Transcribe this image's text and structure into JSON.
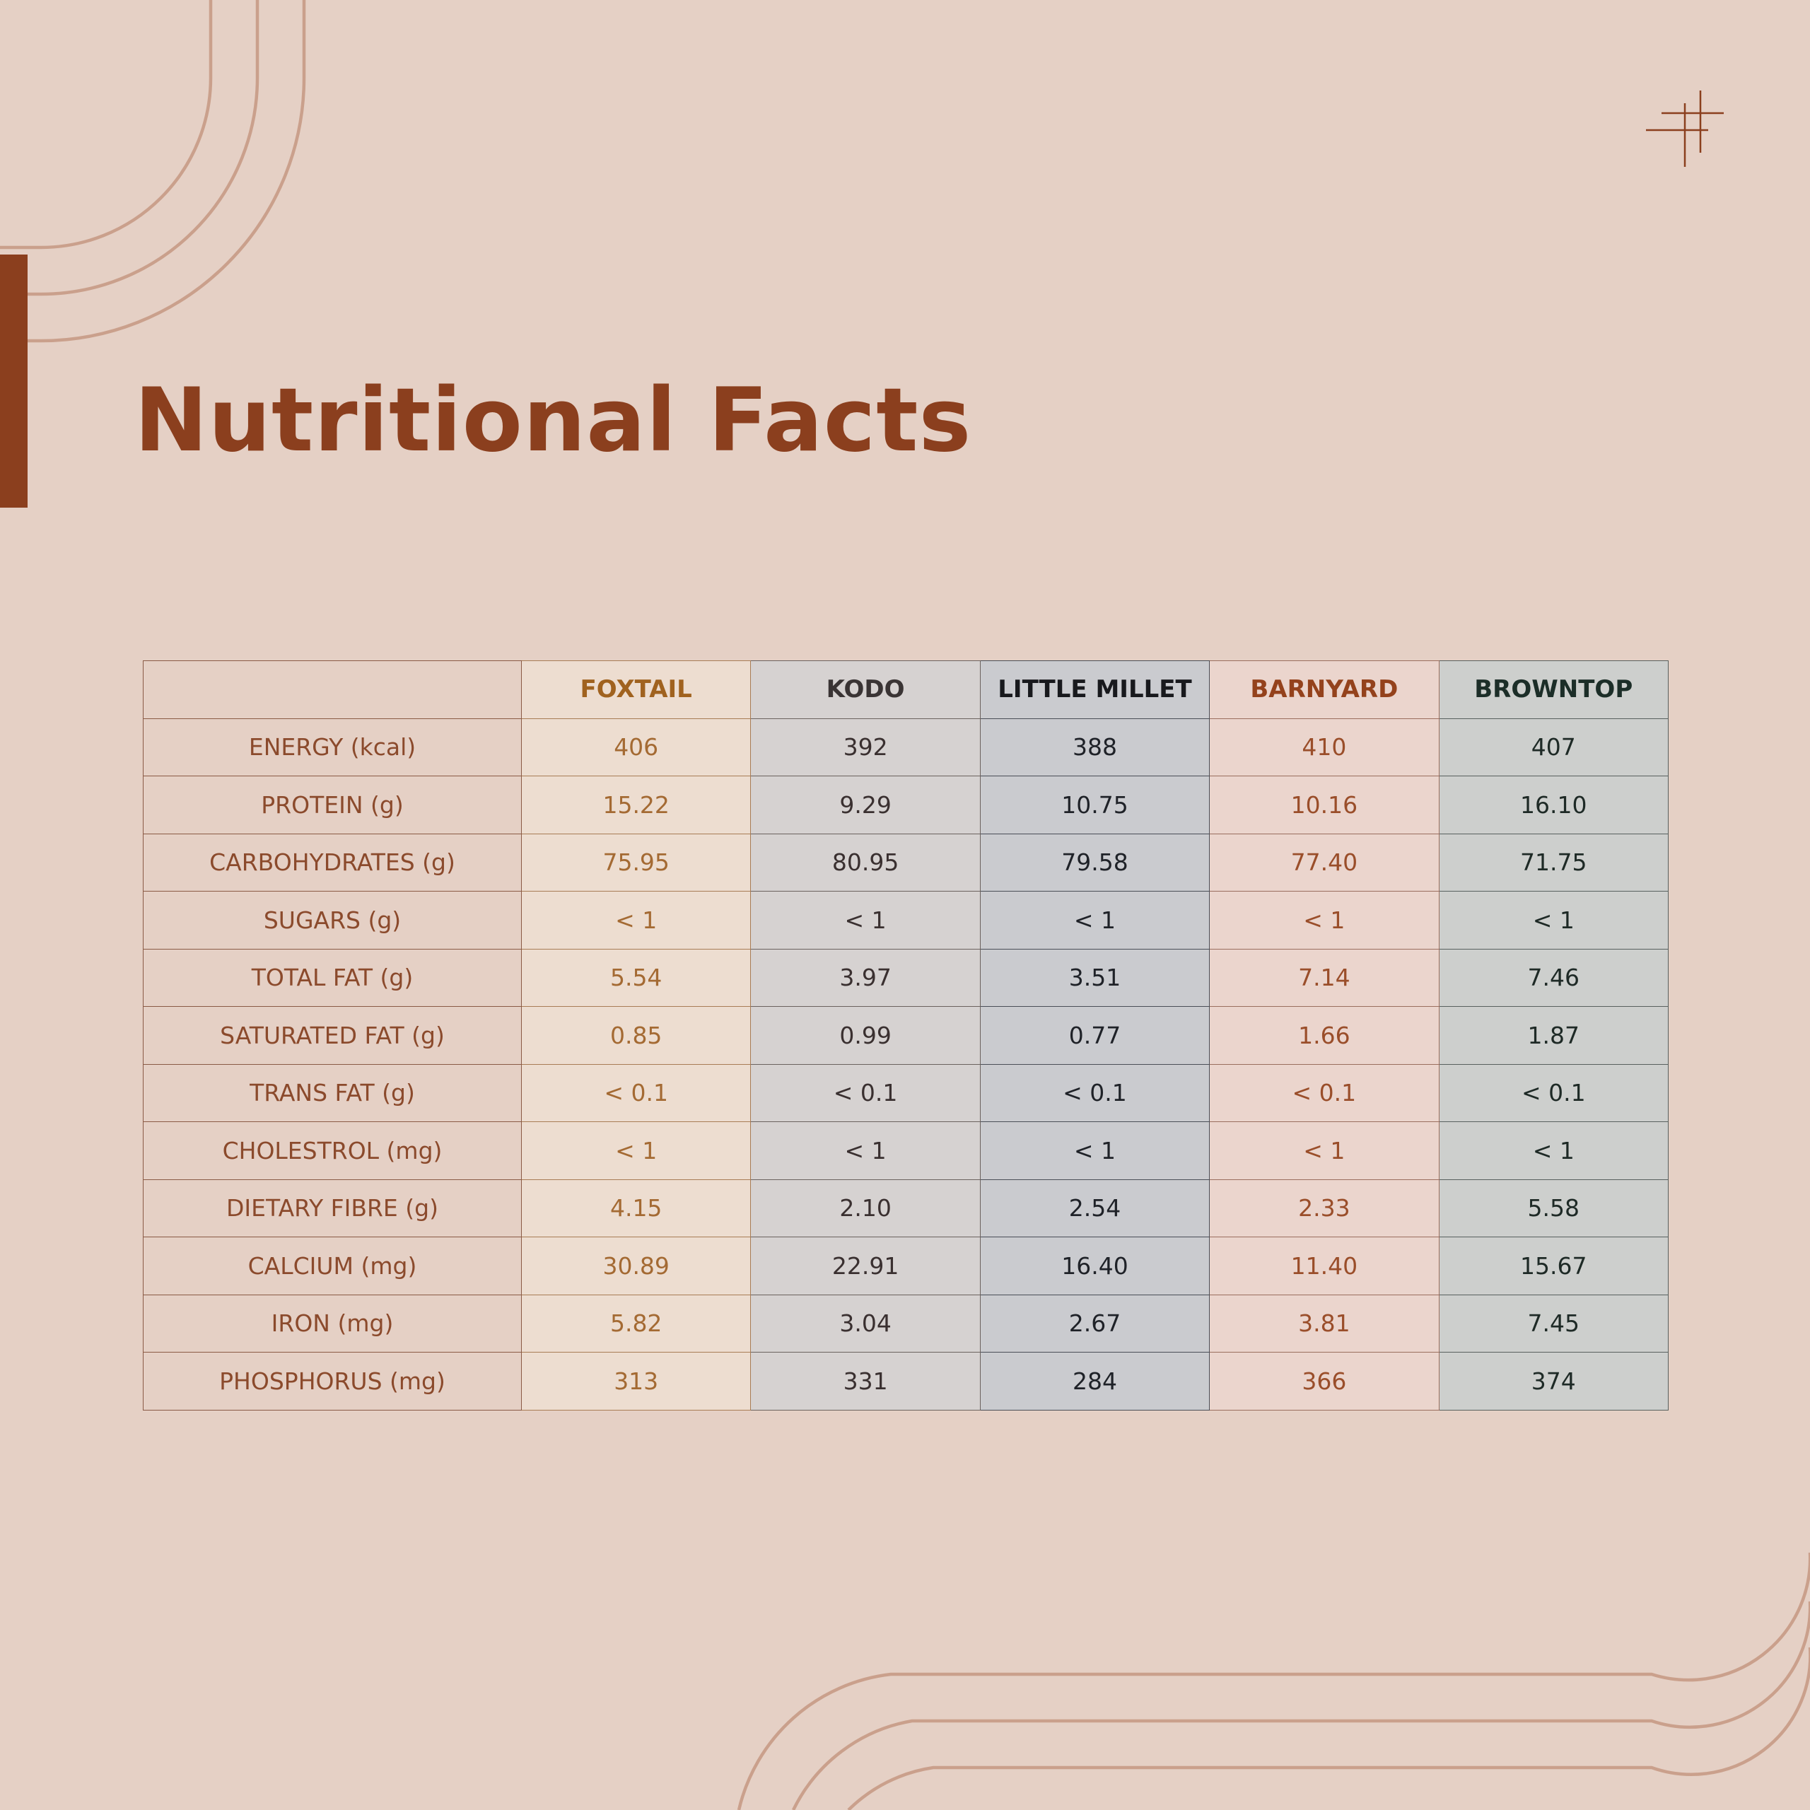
{
  "title": "Nutritional Facts",
  "colors": {
    "accent": "#8b3f1e",
    "background": "#e5d0c5",
    "deco_line": "#caa08c"
  },
  "icons": [
    "hashtag-icon"
  ],
  "table": {
    "columns": [
      "FOXTAIL",
      "KODO",
      "LITTLE MILLET",
      "BARNYARD",
      "BROWNTOP"
    ],
    "rows": [
      {
        "label": "ENERGY (kcal)",
        "values": [
          "406",
          "392",
          "388",
          "410",
          "407"
        ]
      },
      {
        "label": "PROTEIN (g)",
        "values": [
          "15.22",
          "9.29",
          "10.75",
          "10.16",
          "16.10"
        ]
      },
      {
        "label": "CARBOHYDRATES (g)",
        "values": [
          "75.95",
          "80.95",
          "79.58",
          "77.40",
          "71.75"
        ]
      },
      {
        "label": "SUGARS (g)",
        "values": [
          "< 1",
          "< 1",
          "< 1",
          "< 1",
          "< 1"
        ]
      },
      {
        "label": "TOTAL FAT (g)",
        "values": [
          "5.54",
          "3.97",
          "3.51",
          "7.14",
          "7.46"
        ]
      },
      {
        "label": "SATURATED FAT (g)",
        "values": [
          "0.85",
          "0.99",
          "0.77",
          "1.66",
          "1.87"
        ]
      },
      {
        "label": "TRANS FAT (g)",
        "values": [
          "< 0.1",
          "< 0.1",
          "< 0.1",
          "< 0.1",
          "< 0.1"
        ]
      },
      {
        "label": "CHOLESTROL (mg)",
        "values": [
          "< 1",
          "< 1",
          "< 1",
          "< 1",
          "< 1"
        ]
      },
      {
        "label": "DIETARY FIBRE (g)",
        "values": [
          "4.15",
          "2.10",
          "2.54",
          "2.33",
          "5.58"
        ]
      },
      {
        "label": "CALCIUM (mg)",
        "values": [
          "30.89",
          "22.91",
          "16.40",
          "11.40",
          "15.67"
        ]
      },
      {
        "label": "IRON (mg)",
        "values": [
          "5.82",
          "3.04",
          "2.67",
          "3.81",
          "7.45"
        ]
      },
      {
        "label": "PHOSPHORUS (mg)",
        "values": [
          "313",
          "331",
          "284",
          "366",
          "374"
        ]
      }
    ]
  }
}
